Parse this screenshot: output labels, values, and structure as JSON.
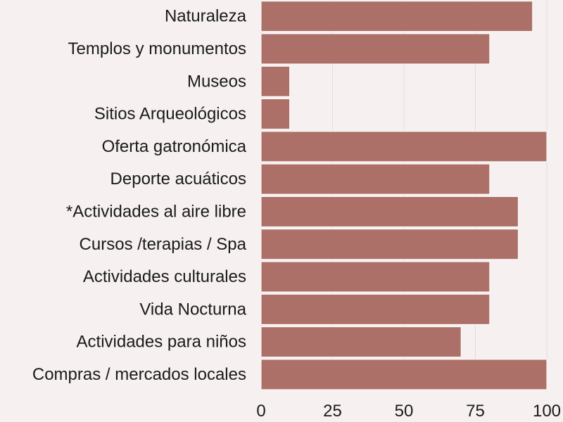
{
  "colors": {
    "background": "#f6f0f0",
    "bar": "#ad7068",
    "bar_edge": "#ffffff",
    "grid": "#e6dcdc",
    "text": "#1a1a1a"
  },
  "chart_data": {
    "type": "bar",
    "orientation": "horizontal",
    "title": "",
    "xlabel": "",
    "ylabel": "",
    "xlim": [
      0,
      100
    ],
    "xticks": [
      0,
      25,
      50,
      75,
      100
    ],
    "grid": true,
    "categories": [
      "Naturaleza",
      "Templos y monumentos",
      "Museos",
      "Sitios Arqueológicos",
      "Oferta gatronómica",
      "Deporte acuáticos",
      "*Actividades al aire libre",
      "Cursos /terapias / Spa",
      "Actividades culturales",
      "Vida Nocturna",
      "Actividades para niños",
      "Compras / mercados locales"
    ],
    "values": [
      95,
      80,
      10,
      10,
      100,
      80,
      90,
      90,
      80,
      80,
      70,
      100
    ]
  }
}
